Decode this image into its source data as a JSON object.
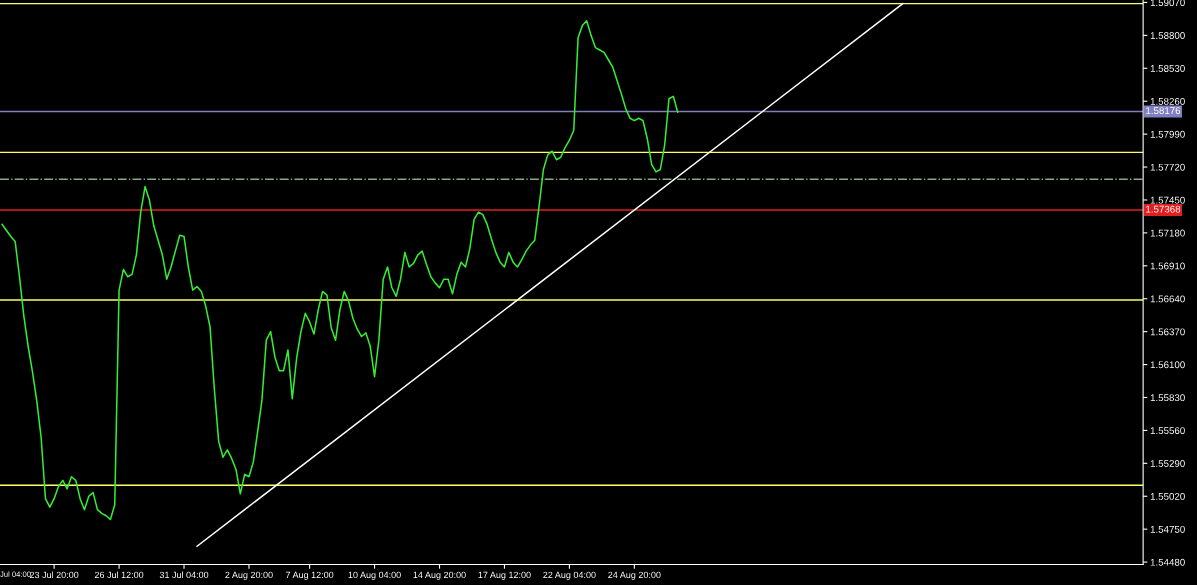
{
  "chart_data": {
    "type": "line",
    "annotations": [
      "Jul 04:00"
    ],
    "categories": [
      null,
      null,
      null,
      null,
      null,
      null,
      null,
      null,
      null,
      null,
      null,
      null,
      "23 Jul 20:00",
      null,
      null,
      null,
      null,
      null,
      null,
      null,
      null,
      null,
      null,
      null,
      null,
      null,
      null,
      "26 Jul 12:00",
      null,
      null,
      null,
      null,
      null,
      null,
      null,
      null,
      null,
      null,
      null,
      null,
      null,
      null,
      "31 Jul 04:00",
      null,
      null,
      null,
      null,
      null,
      null,
      null,
      null,
      null,
      null,
      null,
      null,
      null,
      null,
      "2 Aug 20:00",
      null,
      null,
      null,
      null,
      null,
      null,
      null,
      null,
      null,
      null,
      null,
      null,
      null,
      "7 Aug 12:00",
      null,
      null,
      null,
      null,
      null,
      null,
      null,
      null,
      null,
      null,
      null,
      null,
      null,
      null,
      "10 Aug 04:00",
      null,
      null,
      null,
      null,
      null,
      null,
      null,
      null,
      null,
      null,
      null,
      null,
      null,
      null,
      "14 Aug 20:00",
      null,
      null,
      null,
      null,
      null,
      null,
      null,
      null,
      null,
      null,
      null,
      null,
      null,
      null,
      "17 Aug 12:00",
      null,
      null,
      null,
      null,
      null,
      null,
      null,
      null,
      null,
      null,
      null,
      null,
      null,
      null,
      "22 Aug 04:00",
      null,
      null,
      null,
      null,
      null,
      null,
      null,
      null,
      null,
      null,
      null,
      null,
      null,
      null,
      "24 Aug 20:00",
      null,
      null,
      null,
      null,
      null,
      null,
      null,
      null,
      null,
      null,
      null,
      null,
      null,
      null,
      null,
      null,
      null,
      null,
      null,
      null,
      null,
      null,
      null,
      null,
      null,
      null,
      null,
      null,
      null,
      null,
      null,
      null,
      null,
      null,
      null,
      null,
      null,
      null,
      null,
      null,
      null,
      null,
      null,
      null,
      null,
      null,
      null,
      null,
      null,
      null,
      null,
      null,
      null,
      null,
      null,
      null,
      null,
      null,
      null,
      null,
      null,
      null,
      null,
      null,
      null,
      null,
      null,
      null,
      null,
      null,
      null,
      null,
      null,
      null,
      null,
      null,
      null,
      null,
      null,
      null,
      null,
      null,
      null,
      null,
      null,
      null,
      null,
      null,
      null,
      null,
      null,
      null,
      null,
      null,
      null,
      null,
      null,
      null,
      null,
      null,
      null,
      null,
      null,
      null,
      null,
      null,
      null,
      null,
      null,
      null,
      null,
      null,
      null,
      null,
      null,
      null,
      null
    ],
    "ylim": [
      1.5446,
      1.5909
    ],
    "yticks": [
      {
        "value": 1.5907,
        "label": "1.59070"
      },
      {
        "value": 1.588,
        "label": "1.58800"
      },
      {
        "value": 1.5853,
        "label": "1.58530"
      },
      {
        "value": 1.5826,
        "label": "1.58260"
      },
      {
        "value": 1.5799,
        "label": "1.57990"
      },
      {
        "value": 1.5772,
        "label": "1.57720"
      },
      {
        "value": 1.5745,
        "label": "1.57450"
      },
      {
        "value": 1.5718,
        "label": "1.57180"
      },
      {
        "value": 1.5691,
        "label": "1.56910"
      },
      {
        "value": 1.5664,
        "label": "1.56640"
      },
      {
        "value": 1.5637,
        "label": "1.56370"
      },
      {
        "value": 1.561,
        "label": "1.56100"
      },
      {
        "value": 1.5583,
        "label": "1.55830"
      },
      {
        "value": 1.5556,
        "label": "1.55560"
      },
      {
        "value": 1.5529,
        "label": "1.55290"
      },
      {
        "value": 1.5502,
        "label": "1.55020"
      },
      {
        "value": 1.5475,
        "label": "1.54750"
      },
      {
        "value": 1.5448,
        "label": "1.54480"
      }
    ],
    "grid": false,
    "legend": false,
    "marker": "none",
    "line_style": "solid",
    "ref_lines": [
      {
        "axis": "y",
        "value": 1.5906,
        "color": "#ffff66",
        "line_style": "solid"
      },
      {
        "axis": "y",
        "value": 1.5784,
        "color": "#ffff66",
        "line_style": "solid"
      },
      {
        "axis": "y",
        "value": 1.5663,
        "color": "#ffff66",
        "line_style": "solid"
      },
      {
        "axis": "y",
        "value": 1.5511,
        "color": "#ffff66",
        "line_style": "solid"
      },
      {
        "axis": "y",
        "value": 1.5762,
        "color": "#88aa88",
        "line_style": "dashdot"
      },
      {
        "axis": "y",
        "value": 1.58176,
        "label": "1.58176",
        "color": "#8080c0",
        "line_style": "solid"
      },
      {
        "axis": "y",
        "value": 1.57368,
        "label": "1.57368",
        "color": "#e02020",
        "line_style": "solid"
      }
    ],
    "series": [
      {
        "color": "#33ee33",
        "values": [
          1.5725,
          1.572,
          1.5715,
          1.5711,
          1.5682,
          1.565,
          1.5625,
          1.5604,
          1.558,
          1.555,
          1.55,
          1.5493,
          1.55,
          1.551,
          1.5515,
          1.5508,
          1.5518,
          1.5515,
          1.55,
          1.5491,
          1.5502,
          1.5505,
          1.5491,
          1.5488,
          1.5486,
          1.5483,
          1.5495,
          1.5671,
          1.5688,
          1.5682,
          1.5684,
          1.57,
          1.5735,
          1.5756,
          1.5745,
          1.5724,
          1.5712,
          1.57,
          1.568,
          1.569,
          1.5703,
          1.5716,
          1.5715,
          1.569,
          1.5671,
          1.5674,
          1.567,
          1.5658,
          1.5641,
          1.559,
          1.5547,
          1.5534,
          1.554,
          1.5533,
          1.5524,
          1.5504,
          1.552,
          1.5518,
          1.553,
          1.5555,
          1.5581,
          1.563,
          1.5637,
          1.5616,
          1.5605,
          1.5605,
          1.5622,
          1.5582,
          1.5615,
          1.5637,
          1.5652,
          1.5645,
          1.5635,
          1.5655,
          1.567,
          1.5667,
          1.564,
          1.563,
          1.5655,
          1.567,
          1.5662,
          1.5648,
          1.5639,
          1.5633,
          1.5636,
          1.5625,
          1.56,
          1.563,
          1.568,
          1.569,
          1.5673,
          1.5666,
          1.568,
          1.5702,
          1.569,
          1.5693,
          1.57,
          1.5703,
          1.5692,
          1.5682,
          1.5677,
          1.5673,
          1.568,
          1.568,
          1.5668,
          1.5684,
          1.5694,
          1.569,
          1.5705,
          1.5729,
          1.5735,
          1.5733,
          1.5725,
          1.5713,
          1.5702,
          1.5694,
          1.569,
          1.5702,
          1.5694,
          1.569,
          1.5696,
          1.5703,
          1.5708,
          1.5712,
          1.574,
          1.577,
          1.5782,
          1.5785,
          1.5778,
          1.578,
          1.5788,
          1.5794,
          1.5802,
          1.5878,
          1.5888,
          1.5892,
          1.588,
          1.587,
          1.5868,
          1.5866,
          1.586,
          1.5854,
          1.5843,
          1.5832,
          1.582,
          1.5812,
          1.581,
          1.5812,
          1.581,
          1.5795,
          1.5774,
          1.5768,
          1.577,
          1.579,
          1.5828,
          1.583,
          1.5817,
          null,
          null,
          null,
          null,
          null,
          null,
          null,
          null,
          null,
          null,
          null,
          null,
          null,
          null,
          null,
          null,
          null,
          null,
          null,
          null,
          null,
          null,
          null,
          null,
          null,
          null,
          null,
          null,
          null,
          null,
          null,
          null,
          null,
          null,
          null,
          null,
          null,
          null,
          null,
          null,
          null,
          null,
          null,
          null,
          null,
          null,
          null,
          null,
          null,
          null,
          null,
          null,
          null,
          null,
          null,
          null,
          null,
          null,
          null,
          null,
          null,
          null,
          null,
          null,
          null,
          null,
          null,
          null,
          null,
          null,
          null,
          null,
          null,
          null,
          null,
          null,
          null,
          null,
          null,
          null,
          null,
          null,
          null,
          null,
          null,
          null,
          null,
          null,
          null,
          null,
          null,
          null,
          null,
          null,
          null,
          null,
          null,
          null,
          null,
          null,
          null,
          null,
          null,
          null,
          null,
          null,
          null
        ]
      },
      {
        "color": "#ffffff",
        "values": [
          null,
          null,
          null,
          null,
          null,
          null,
          null,
          null,
          null,
          null,
          null,
          null,
          null,
          null,
          null,
          null,
          null,
          null,
          null,
          null,
          null,
          null,
          null,
          null,
          null,
          null,
          null,
          null,
          null,
          null,
          null,
          null,
          null,
          null,
          null,
          null,
          null,
          null,
          null,
          null,
          null,
          null,
          null,
          null,
          null,
          1.5461,
          null,
          null,
          null,
          null,
          null,
          null,
          null,
          null,
          null,
          null,
          null,
          null,
          null,
          null,
          null,
          null,
          null,
          null,
          null,
          null,
          null,
          null,
          null,
          null,
          null,
          null,
          null,
          null,
          null,
          null,
          null,
          null,
          null,
          null,
          null,
          null,
          null,
          null,
          null,
          null,
          null,
          null,
          null,
          null,
          null,
          null,
          null,
          null,
          null,
          null,
          null,
          null,
          null,
          null,
          null,
          null,
          null,
          null,
          null,
          null,
          null,
          null,
          null,
          null,
          null,
          null,
          null,
          null,
          null,
          null,
          null,
          null,
          null,
          null,
          null,
          null,
          null,
          null,
          null,
          null,
          null,
          null,
          null,
          null,
          null,
          null,
          null,
          null,
          null,
          null,
          null,
          null,
          null,
          null,
          null,
          null,
          null,
          null,
          null,
          null,
          null,
          null,
          null,
          null,
          null,
          null,
          null,
          null,
          null,
          null,
          null,
          null,
          null,
          null,
          null,
          null,
          null,
          null,
          null,
          null,
          null,
          null,
          null,
          null,
          null,
          null,
          null,
          null,
          null,
          null,
          null,
          null,
          null,
          null,
          null,
          null,
          null,
          null,
          null,
          null,
          null,
          null,
          null,
          null,
          null,
          null,
          null,
          null,
          null,
          null,
          null,
          null,
          null,
          null,
          null,
          null,
          null,
          null,
          null,
          null,
          null,
          null,
          1.5906,
          null,
          null,
          null,
          null,
          null,
          null,
          null,
          null,
          null,
          null,
          null,
          null,
          null,
          null,
          null,
          null,
          null,
          null,
          null,
          null,
          null,
          null,
          null,
          null,
          null,
          null,
          null,
          null,
          null,
          null,
          null,
          null,
          null,
          null,
          null,
          null,
          null,
          null,
          null,
          null,
          null,
          null,
          null,
          null,
          null,
          null,
          null,
          null,
          null,
          null,
          null,
          null,
          null,
          null,
          null
        ]
      }
    ]
  }
}
